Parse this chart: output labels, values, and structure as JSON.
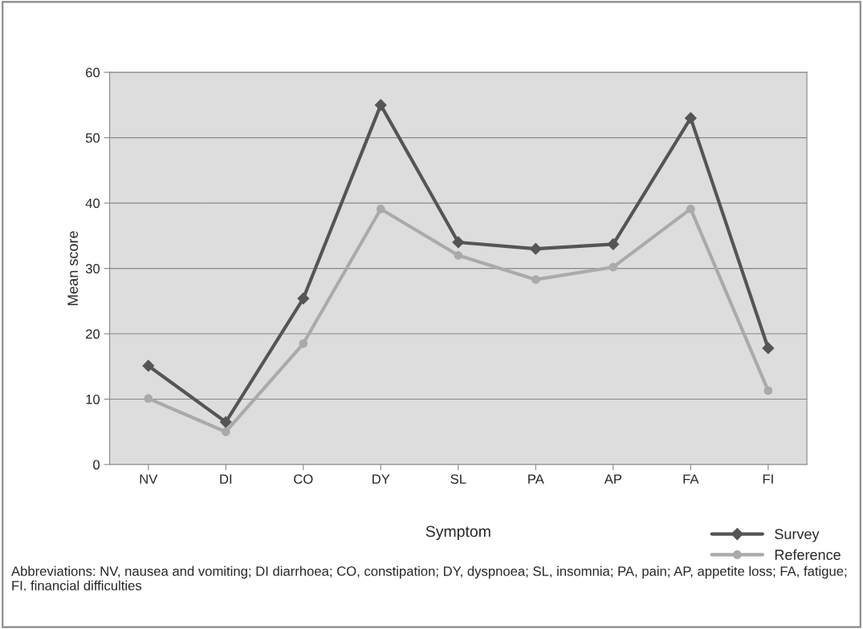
{
  "chart_data": {
    "type": "line",
    "xlabel": "Symptom",
    "ylabel": "Mean score",
    "categories": [
      "NV",
      "DI",
      "CO",
      "DY",
      "SL",
      "PA",
      "AP",
      "FA",
      "FI"
    ],
    "series": [
      {
        "name": "Survey",
        "color": "#555555",
        "marker": "diamond",
        "values": [
          15.1,
          6.5,
          25.4,
          55.0,
          34.0,
          33.0,
          33.7,
          53.0,
          17.8
        ]
      },
      {
        "name": "Reference",
        "color": "#aaaaaa",
        "marker": "circle",
        "values": [
          10.1,
          5.0,
          18.5,
          39.1,
          32.0,
          28.3,
          30.2,
          39.1,
          11.3
        ]
      }
    ],
    "ylim": [
      0,
      60
    ],
    "yticks": [
      0,
      10,
      20,
      30,
      40,
      50,
      60
    ],
    "grid": "y",
    "legend": "bottom right",
    "annotations": [
      "Abbreviations: NV, nausea and vomiting; DI diarrhoea; CO, constipation; DY, dyspnoea; SL, insomnia; PA, pain; AP, appetite loss; FA, fatigue; FI. financial difficulties"
    ]
  }
}
